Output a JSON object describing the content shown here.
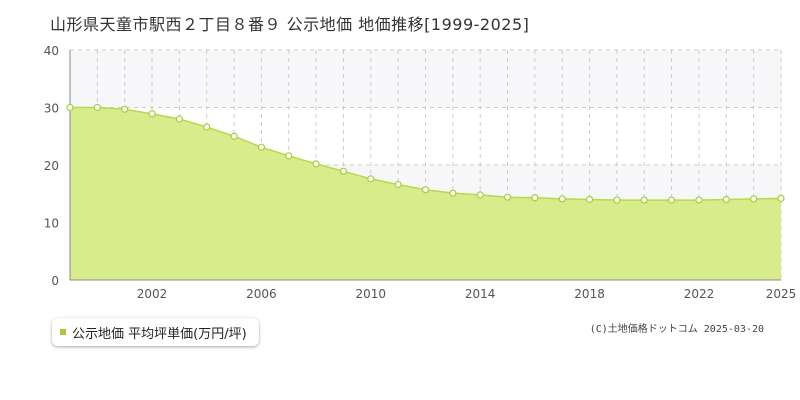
{
  "chart_data": {
    "type": "area",
    "title": "山形県天童市駅西２丁目８番９ 公示地価 地価推移[1999-2025]",
    "x": [
      1999,
      2000,
      2001,
      2002,
      2003,
      2004,
      2005,
      2006,
      2007,
      2008,
      2009,
      2010,
      2011,
      2012,
      2013,
      2014,
      2015,
      2016,
      2017,
      2018,
      2019,
      2020,
      2021,
      2022,
      2023,
      2024,
      2025
    ],
    "series": [
      {
        "name": "公示地価 平均坪単価(万円/坪)",
        "values": [
          30.0,
          30.0,
          29.7,
          28.9,
          28.0,
          26.6,
          25.0,
          23.1,
          21.6,
          20.2,
          18.9,
          17.6,
          16.6,
          15.7,
          15.1,
          14.8,
          14.4,
          14.3,
          14.1,
          14.0,
          13.9,
          13.9,
          13.9,
          13.9,
          14.0,
          14.1,
          14.2
        ],
        "color": "#c8e05a"
      }
    ],
    "xticks": [
      2002,
      2006,
      2010,
      2014,
      2018,
      2022,
      2025
    ],
    "yticks": [
      0,
      10,
      20,
      30,
      40
    ],
    "xlim": [
      1999,
      2025
    ],
    "ylim": [
      0,
      40
    ],
    "xlabel": "",
    "ylabel": "",
    "grid": true,
    "legend_position": "bottom-left",
    "fill_color": "#d9ec8c",
    "line_color": "#b7d94a",
    "marker_fill": "#ffffff",
    "marker_stroke": "#a9cc3c",
    "band_color": "#f7f7fa"
  },
  "legend_label": "公示地価 平均坪単価(万円/坪)",
  "legend_color": "#a9cc3c",
  "copyright": "(C)土地価格ドットコム 2025-03-20"
}
